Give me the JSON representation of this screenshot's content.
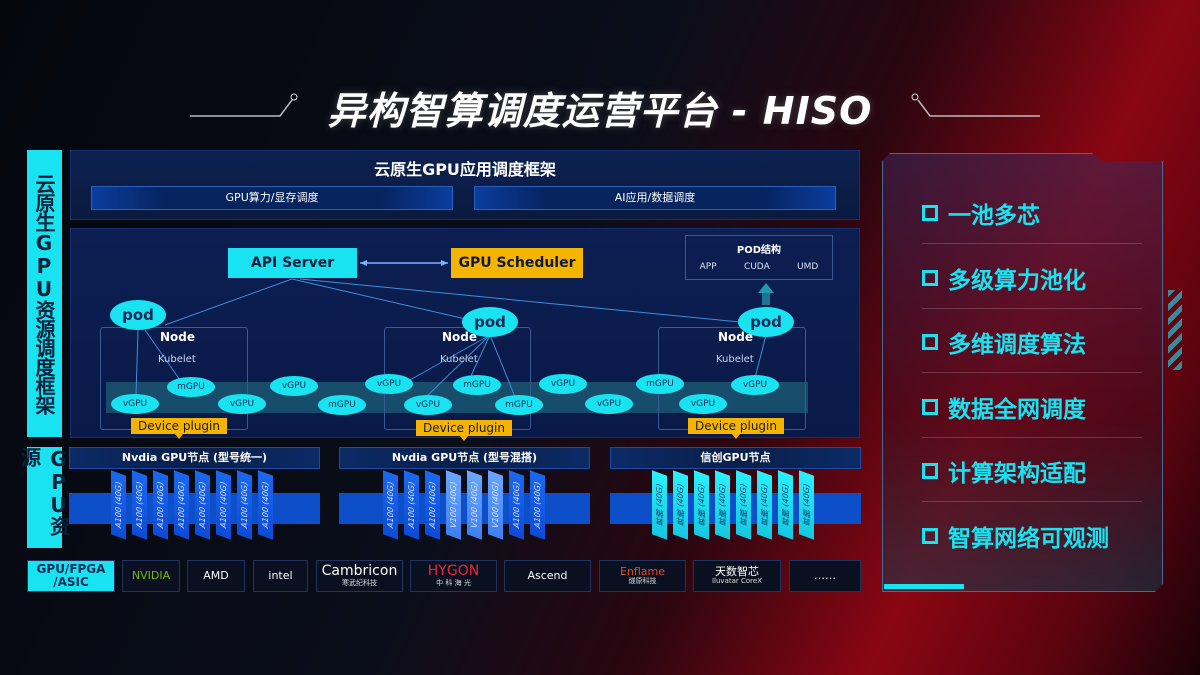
{
  "title": "异构智算调度运营平台 - HISO",
  "left_labels": {
    "top": "云原生GPU资源调度框架",
    "bottom": "GPU资源"
  },
  "framework": {
    "title": "云原生GPU应用调度框架",
    "bars": [
      "GPU算力/显存调度",
      "AI应用/数据调度"
    ]
  },
  "control": {
    "api_server": "API Server",
    "scheduler": "GPU Scheduler",
    "pod_struct": {
      "title": "POD结构",
      "items": [
        "APP",
        "CUDA",
        "UMD"
      ]
    }
  },
  "nodes": [
    {
      "node": "Node",
      "kubelet": "Kubelet",
      "pod": "pod",
      "device_plugin": "Device plugin"
    },
    {
      "node": "Node",
      "kubelet": "Kubelet",
      "pod": "pod",
      "device_plugin": "Device plugin"
    },
    {
      "node": "Node",
      "kubelet": "Kubelet",
      "pod": "pod",
      "device_plugin": "Device plugin"
    }
  ],
  "vgpus": [
    "vGPU",
    "mGPU",
    "vGPU",
    "vGPU",
    "mGPU",
    "vGPU",
    "vGPU",
    "mGPU",
    "mGPU",
    "vGPU",
    "vGPU",
    "mGPU",
    "vGPU",
    "vGPU"
  ],
  "gpu_groups": [
    {
      "title": "Nvdia GPU节点 (型号统一)",
      "cards": [
        "A100 (40G)",
        "A100 (40G)",
        "A100 (40G)",
        "A100 (40G)",
        "A100 (40G)",
        "A100 (40G)",
        "A100 (40G)",
        "A100 (40G)"
      ],
      "style": [
        "d",
        "d",
        "d",
        "d",
        "d",
        "d",
        "d",
        "d"
      ]
    },
    {
      "title": "Nvdia GPU节点 (型号混搭)",
      "cards": [
        "A100 (40G)",
        "A100 (40G)",
        "A100 (40G)",
        "V100 (40G)",
        "V100 (40G)",
        "V100 (40G)",
        "A100 (40G)",
        "A100 (40G)"
      ],
      "style": [
        "d",
        "d",
        "d",
        "l",
        "l",
        "l",
        "d",
        "d"
      ]
    },
    {
      "title": "信创GPU节点",
      "cards": [
        "昇腾 (40G)",
        "昇腾 (40G)",
        "昇腾 (40G)",
        "昇腾 (40G)",
        "昇腾 (40G)",
        "昇腾 (40G)",
        "昇腾 (40G)",
        "昇腾 (40G)"
      ],
      "style": [
        "c",
        "c",
        "c",
        "c",
        "c",
        "c",
        "c",
        "c"
      ]
    }
  ],
  "vendors": {
    "label": "GPU/FPGA /ASIC",
    "items": [
      {
        "name": "NVIDIA",
        "sub": ""
      },
      {
        "name": "AMD",
        "sub": ""
      },
      {
        "name": "intel",
        "sub": ""
      },
      {
        "name": "Cambricon",
        "sub": "寒武纪科技"
      },
      {
        "name": "HYGON",
        "sub": "中 科 海 光"
      },
      {
        "name": "Ascend",
        "sub": ""
      },
      {
        "name": "Enflame",
        "sub": "燧原科技"
      },
      {
        "name": "天数智芯",
        "sub": "Iluvatar CoreX"
      },
      {
        "name": "……",
        "sub": ""
      }
    ]
  },
  "features": [
    "一池多芯",
    "多级算力池化",
    "多维调度算法",
    "数据全网调度",
    "计算架构适配",
    "智算网络可观测"
  ],
  "colors": {
    "cyan": "#19e3f0",
    "orange": "#f5b400",
    "blue": "#0d4fc8"
  }
}
